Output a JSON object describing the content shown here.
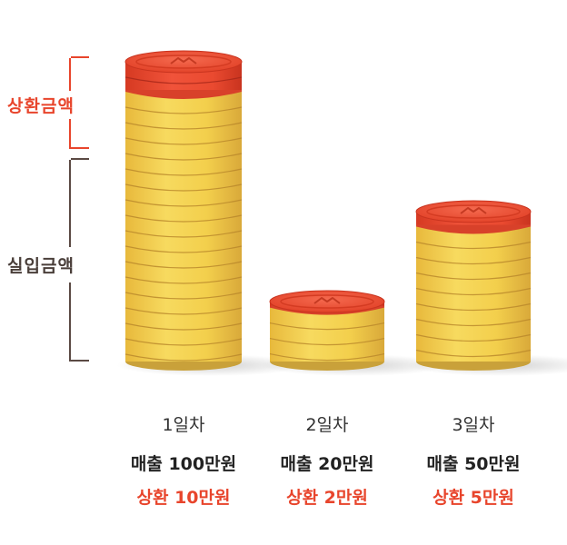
{
  "colors": {
    "repay": "#e8452c",
    "repay_dark": "#b8321f",
    "actual": "#f2cf4f",
    "actual_dark": "#c9a13a",
    "bracket_repay": "#e8452c",
    "bracket_actual": "#5b4a44",
    "label_actual": "#4a3f3a"
  },
  "legend": {
    "repay_label": "상환금액",
    "actual_label": "실입금액"
  },
  "chart_data": {
    "type": "bar",
    "stacked": true,
    "categories": [
      "1일차",
      "2일차",
      "3일차"
    ],
    "series": [
      {
        "name": "실입금액",
        "values": [
          90,
          18,
          45
        ]
      },
      {
        "name": "상환금액",
        "values": [
          10,
          2,
          5
        ]
      }
    ],
    "ylim": [
      0,
      100
    ],
    "grid": false
  },
  "captions": [
    {
      "day": "1일차",
      "sales": "매출 100만원",
      "repay": "상환 10만원"
    },
    {
      "day": "2일차",
      "sales": "매출 20만원",
      "repay": "상환 2만원"
    },
    {
      "day": "3일차",
      "sales": "매출 50만원",
      "repay": "상환 5만원"
    }
  ]
}
